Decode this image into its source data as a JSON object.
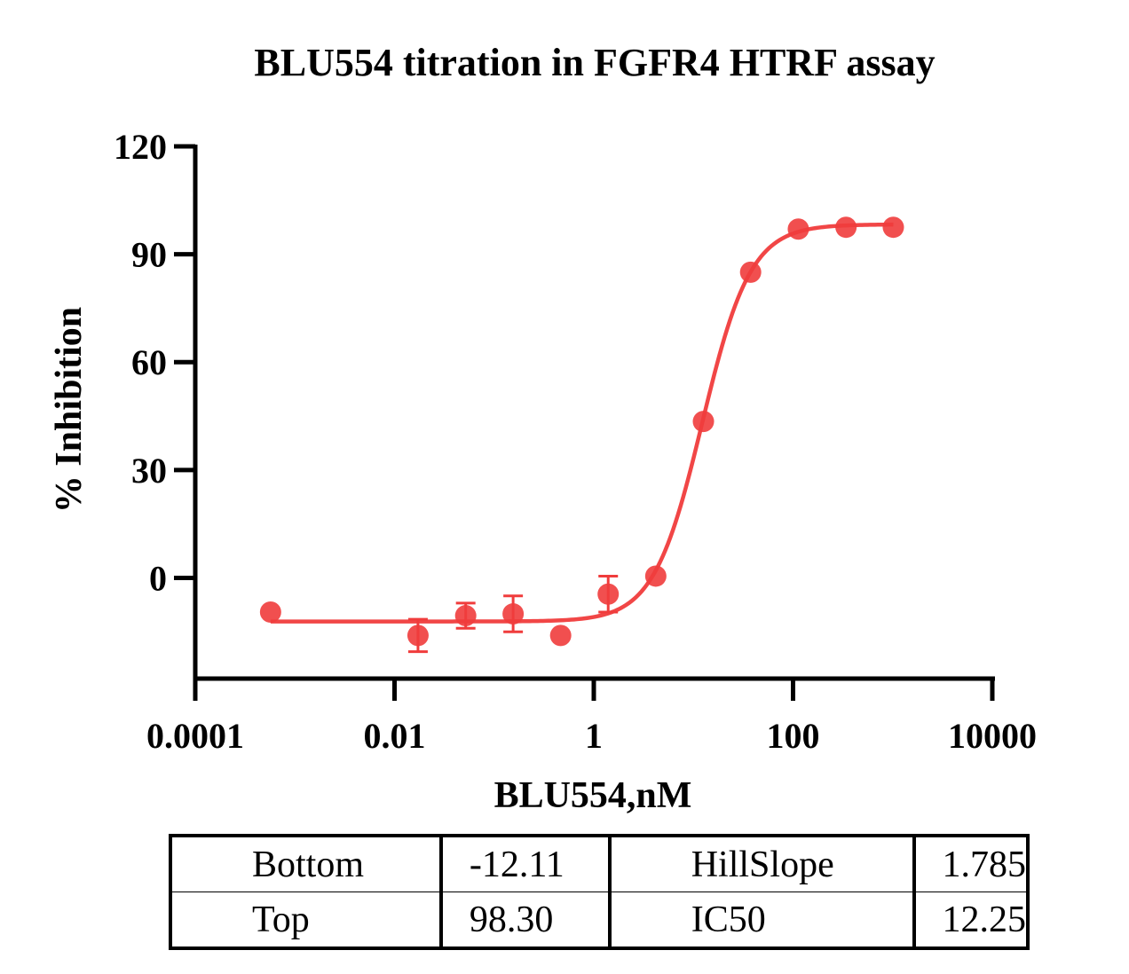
{
  "chart_data": {
    "type": "scatter",
    "title": "BLU554  titration in FGFR4 HTRF assay",
    "xlabel": "BLU554,nM",
    "ylabel": "% Inhibition",
    "x_scale": "log",
    "xlim": [
      0.0001,
      10000
    ],
    "ylim": [
      -28,
      120
    ],
    "x_ticks": [
      0.0001,
      0.01,
      1,
      100,
      10000
    ],
    "x_tick_labels": [
      "0.0001",
      "0.01",
      "1",
      "100",
      "10000"
    ],
    "y_ticks": [
      0,
      30,
      60,
      90,
      120
    ],
    "y_tick_labels": [
      "0",
      "30",
      "60",
      "90",
      "120"
    ],
    "color": "#f03c3c",
    "grid": false,
    "points": [
      {
        "x": 0.00057,
        "y": -9.5,
        "err": 0
      },
      {
        "x": 0.0172,
        "y": -16.0,
        "err": 4.5
      },
      {
        "x": 0.0518,
        "y": -10.5,
        "err": 3.5
      },
      {
        "x": 0.155,
        "y": -10.0,
        "err": 5.0
      },
      {
        "x": 0.465,
        "y": -16.0,
        "err": 0
      },
      {
        "x": 1.395,
        "y": -4.5,
        "err": 5.0
      },
      {
        "x": 4.19,
        "y": 0.5,
        "err": 0
      },
      {
        "x": 12.6,
        "y": 43.5,
        "err": 0
      },
      {
        "x": 37.5,
        "y": 85.0,
        "err": 0
      },
      {
        "x": 113,
        "y": 97.0,
        "err": 0
      },
      {
        "x": 340,
        "y": 97.5,
        "err": 0
      },
      {
        "x": 1015,
        "y": 97.5,
        "err": 0
      }
    ],
    "fit": {
      "model": "four-parameter logistic",
      "bottom": -12.11,
      "top": 98.3,
      "hillslope": 1.785,
      "ic50": 12.25
    }
  },
  "params_table": {
    "rows": [
      [
        "Bottom",
        "-12.11",
        "HillSlope",
        "1.785"
      ],
      [
        "Top",
        "98.30",
        "IC50",
        "12.25"
      ]
    ]
  }
}
